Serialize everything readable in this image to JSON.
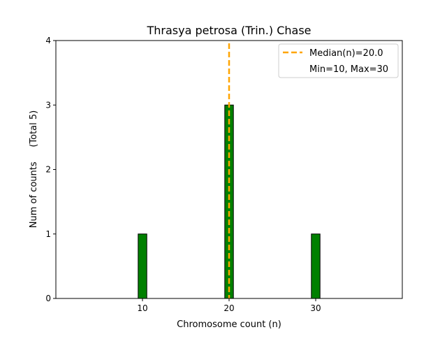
{
  "chart_data": {
    "type": "bar",
    "title": "Thrasya petrosa (Trin.) Chase",
    "xlabel": "Chromosome count (n)",
    "ylabel": "Num of counts     (Total 5)",
    "xlim": [
      0,
      40
    ],
    "ylim": [
      0,
      4
    ],
    "xticks": [
      10,
      20,
      30
    ],
    "yticks": [
      0,
      1,
      2,
      3,
      4
    ],
    "bar_width": 1,
    "bars": [
      {
        "x": 10,
        "value": 1
      },
      {
        "x": 20,
        "value": 3
      },
      {
        "x": 30,
        "value": 1
      }
    ],
    "baseline_end": 33.5,
    "median": 20.0,
    "legend": {
      "location": "top-right",
      "entries": [
        "Median(n)=20.0",
        "Min=10, Max=30"
      ]
    },
    "colors": {
      "bar_fill": "#008000",
      "bar_edge": "#000000",
      "median_line": "#FFA500"
    }
  }
}
